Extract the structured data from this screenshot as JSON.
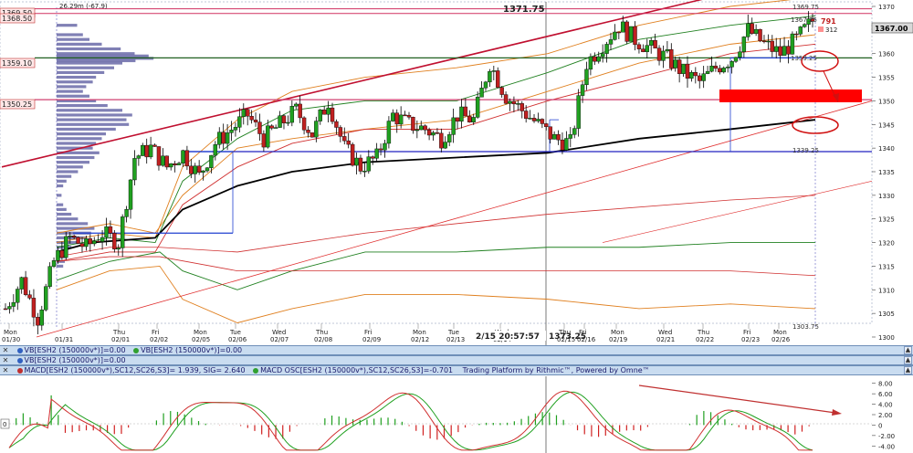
{
  "header": {
    "range_text": "26.29m (-67.9)",
    "high_label": "1371.75",
    "crosshair_time": "2/15 20:57:57",
    "crosshair_price": "1373.25"
  },
  "price_tags": {
    "left": [
      "1369.50",
      "1368.50",
      "1359.10",
      "1350.25"
    ],
    "right_top": "1369.75",
    "current": "1367.00",
    "volume_counter": "791",
    "volume_sub": "312",
    "level_1339": "1339.25",
    "level_1303": "1303.75",
    "level_1359": "1359.25",
    "level_1367": "1367.25"
  },
  "chart_data": [
    {
      "type": "candlestick",
      "instrument": "ESH2",
      "bar_type": "150000v",
      "y_axis": {
        "ylim": [
          1300,
          1370
        ],
        "ticks": [
          1300,
          1305,
          1310,
          1315,
          1320,
          1325,
          1330,
          1335,
          1340,
          1345,
          1350,
          1355,
          1360,
          1365,
          1370
        ]
      },
      "x_labels": [
        {
          "day": "Mon",
          "date": "01/30"
        },
        {
          "day": "",
          "date": "01/31"
        },
        {
          "day": "Thu",
          "date": "02/01"
        },
        {
          "day": "Fri",
          "date": "02/02"
        },
        {
          "day": "Mon",
          "date": "02/05"
        },
        {
          "day": "Tue",
          "date": "02/06"
        },
        {
          "day": "Wed",
          "date": "02/07"
        },
        {
          "day": "Thu",
          "date": "02/08"
        },
        {
          "day": "Fri",
          "date": "02/09"
        },
        {
          "day": "Mon",
          "date": "02/12"
        },
        {
          "day": "Tue",
          "date": "02/13"
        },
        {
          "day": "Wed",
          "date": "02/14"
        },
        {
          "day": "Thu",
          "date": "02/15"
        },
        {
          "day": "Fri",
          "date": "02/16"
        },
        {
          "day": "Mon",
          "date": "02/19"
        },
        {
          "day": "Wed",
          "date": "02/21"
        },
        {
          "day": "Thu",
          "date": "02/22"
        },
        {
          "day": "Fri",
          "date": "02/23"
        },
        {
          "day": "Mon",
          "date": "02/26"
        }
      ],
      "close_path": [
        1306,
        1312,
        1304,
        1316,
        1321,
        1319,
        1322,
        1320,
        1338,
        1340,
        1336,
        1339,
        1334,
        1341,
        1344,
        1347,
        1342,
        1345,
        1348,
        1343,
        1350,
        1340,
        1336,
        1338,
        1347,
        1345,
        1344,
        1342,
        1347,
        1346,
        1358,
        1351,
        1348,
        1345,
        1342,
        1341,
        1358,
        1362,
        1366,
        1363,
        1361,
        1359,
        1356,
        1354,
        1357,
        1359,
        1365,
        1362,
        1360,
        1363,
        1367
      ],
      "horizontal_levels": [
        1369.5,
        1368.5,
        1359.1,
        1350.25,
        1339.25
      ],
      "annotation_marks": [
        "red-box",
        "ellipse-upper",
        "ellipse-lower",
        "arrow-down"
      ]
    },
    {
      "type": "line",
      "name": "MACD[ESH2 (150000v*),SC12,SC26,S3]",
      "macd_value": "1.939",
      "signal_value": "2.640",
      "osc_value": "-0.701",
      "y_ticks": [
        "8.00",
        "6.00",
        "4.00",
        "2.00",
        "0",
        "-2.00",
        "-4.00"
      ],
      "ylim": [
        -5,
        9
      ]
    }
  ],
  "panels": {
    "vb1": {
      "label_a": "VB[ESH2 (150000v*)]=0.00",
      "label_b": "VB[ESH2 (150000v*)]=0.00"
    },
    "vb2": {
      "label_a": "VB[ESH2 (150000v*)]=0.00"
    },
    "macd": {
      "label_a": "MACD[ESH2 (150000v*),SC12,SC26,S3]=  1.939, SIG=  2.640",
      "label_b": "MACD OSC[ESH2 (150000v*),SC12,SC26,S3]=-0.701",
      "platform": "Trading Platform by Rithmic™, Powered by Omne™"
    }
  },
  "colors": {
    "up_candle": "#20a020",
    "down_candle": "#c02020",
    "macd_line": "#d03030",
    "signal_line": "#20a020",
    "channel_top": "#c01030",
    "level_line": "#d04070",
    "vwap_black": "#000000",
    "profile_fill": "#6a6aa8"
  }
}
